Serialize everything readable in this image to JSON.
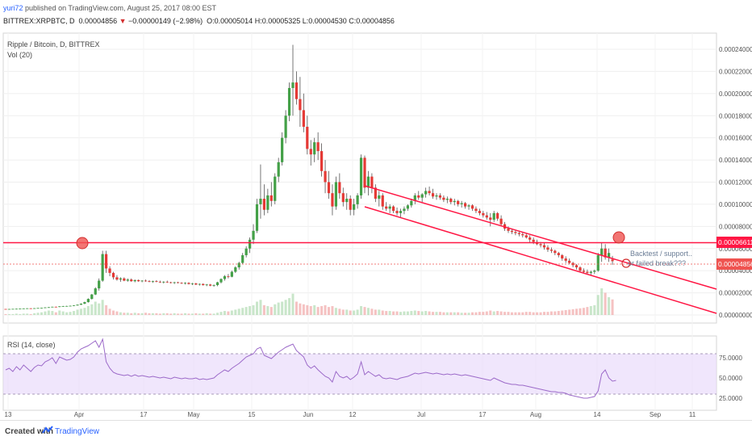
{
  "header": {
    "user": "yuri72",
    "published": "published on TradingView.com, August 25, 2017 08:00 EST",
    "symbol": "BITTREX:XRPBTC, D",
    "last": "0.00004856",
    "change": "−0.00000149 (−2.98%)",
    "ohlc": "O:0.00005014 H:0.00005325 L:0.00004530 C:0.00004856"
  },
  "chart_data": {
    "type": "candlestick",
    "title": "Ripple / Bitcoin, D, BITTREX",
    "volume_label": "Vol (20)",
    "rsi_label": "RSI (14, close)",
    "x_ticks": [
      "13",
      "Apr",
      "17",
      "May",
      "15",
      "Jun",
      "12",
      "Jul",
      "17",
      "Aug",
      "14",
      "Sep",
      "11"
    ],
    "y_ticks": [
      "0.00024000",
      "0.00022000",
      "0.00020000",
      "0.00018000",
      "0.00016000",
      "0.00014000",
      "0.00012000",
      "0.00010000",
      "0.00008000",
      "0.00006000",
      "0.00004000",
      "0.00002000",
      "0.00000000"
    ],
    "ylim": [
      0.0,
      0.00024
    ],
    "rsi_ticks": [
      "75.0000",
      "50.0000",
      "25.0000"
    ],
    "rsi_band": [
      30,
      70
    ],
    "price_markers": [
      {
        "label": "0.00006611",
        "value": 6.611e-05,
        "color": "#ff1744"
      },
      {
        "label": "0.00004856",
        "value": 4.856e-05,
        "color": "#ef5350"
      }
    ],
    "annotations": [
      "Backtest / support..",
      "or failed break???"
    ],
    "colors": {
      "up": "#43a047",
      "down": "#e53935",
      "line": "#ff1744",
      "rsi": "#9c6ac9",
      "rsi_band": "#e8d9fb"
    },
    "ohlc": [
      [
        5.4e-06,
        5.5e-06,
        5.2e-06,
        5.3e-06
      ],
      [
        5.3e-06,
        5.5e-06,
        5.2e-06,
        5.4e-06
      ],
      [
        5.4e-06,
        5.6e-06,
        5.3e-06,
        5.5e-06
      ],
      [
        5.5e-06,
        5.7e-06,
        5.4e-06,
        5.6e-06
      ],
      [
        5.6e-06,
        5.8e-06,
        5.5e-06,
        5.7e-06
      ],
      [
        5.7e-06,
        6e-06,
        5.6e-06,
        5.9e-06
      ],
      [
        5.9e-06,
        6.1e-06,
        5.8e-06,
        6e-06
      ],
      [
        6e-06,
        6.1e-06,
        5.8e-06,
        5.9e-06
      ],
      [
        5.9e-06,
        6.2e-06,
        5.8e-06,
        6.1e-06
      ],
      [
        6.1e-06,
        6.4e-06,
        6e-06,
        6.3e-06
      ],
      [
        6.3e-06,
        6.6e-06,
        6.2e-06,
        6.5e-06
      ],
      [
        6.5e-06,
        7e-06,
        6.3e-06,
        6.8e-06
      ],
      [
        6.8e-06,
        7.2e-06,
        6.6e-06,
        7e-06
      ],
      [
        7e-06,
        7.5e-06,
        6.9e-06,
        7.4e-06
      ],
      [
        7.4e-06,
        7.6e-06,
        7.1e-06,
        7.2e-06
      ],
      [
        7.2e-06,
        7.9e-06,
        7.1e-06,
        7.8e-06
      ],
      [
        7.8e-06,
        8.2e-06,
        7.6e-06,
        8e-06
      ],
      [
        8e-06,
        8.3e-06,
        7.8e-06,
        8.1e-06
      ],
      [
        8.1e-06,
        8.5e-06,
        7.9e-06,
        8.3e-06
      ],
      [
        8.3e-06,
        8.8e-06,
        8.1e-06,
        8.6e-06
      ],
      [
        8.6e-06,
        9.5e-06,
        8.5e-06,
        9.3e-06
      ],
      [
        9.3e-06,
        1.05e-05,
        9e-06,
        1.02e-05
      ],
      [
        1.02e-05,
        1.2e-05,
        9.8e-06,
        1.16e-05
      ],
      [
        1.16e-05,
        1.5e-05,
        1.12e-05,
        1.45e-05
      ],
      [
        1.45e-05,
        1.9e-05,
        1.4e-05,
        1.85e-05
      ],
      [
        1.85e-05,
        2.5e-05,
        1.8e-05,
        2.4e-05
      ],
      [
        2.4e-05,
        3.3e-05,
        2.2e-05,
        3.1e-05
      ],
      [
        3.1e-05,
        5.8e-05,
        3e-05,
        5.5e-05
      ],
      [
        5.5e-05,
        5.8e-05,
        3.8e-05,
        4.2e-05
      ],
      [
        4.2e-05,
        4.4e-05,
        3.5e-05,
        3.8e-05
      ],
      [
        3.8e-05,
        3.9e-05,
        3.2e-05,
        3.4e-05
      ],
      [
        3.4e-05,
        3.6e-05,
        3.1e-05,
        3.2e-05
      ],
      [
        3.2e-05,
        3.4e-05,
        3e-05,
        3.3e-05
      ],
      [
        3.3e-05,
        3.4e-05,
        3.05e-05,
        3.1e-05
      ],
      [
        3.1e-05,
        3.3e-05,
        3e-05,
        3.2e-05
      ],
      [
        3.2e-05,
        3.3e-05,
        3e-05,
        3.05e-05
      ],
      [
        3.05e-05,
        3.2e-05,
        2.95e-05,
        3.15e-05
      ],
      [
        3.15e-05,
        3.2e-05,
        3e-05,
        3.05e-05
      ],
      [
        3.05e-05,
        3.15e-05,
        2.95e-05,
        3.1e-05
      ],
      [
        3.1e-05,
        3.2e-05,
        3e-05,
        3.05e-05
      ],
      [
        3.05e-05,
        3.15e-05,
        2.95e-05,
        3e-05
      ],
      [
        3e-05,
        3.1e-05,
        2.9e-05,
        3.05e-05
      ],
      [
        3.05e-05,
        3.15e-05,
        2.95e-05,
        3e-05
      ],
      [
        3e-05,
        3.1e-05,
        2.9e-05,
        2.95e-05
      ],
      [
        2.95e-05,
        3.05e-05,
        2.85e-05,
        3e-05
      ],
      [
        3e-05,
        3.1e-05,
        2.9e-05,
        2.95e-05
      ],
      [
        2.95e-05,
        3e-05,
        2.85e-05,
        2.9e-05
      ],
      [
        2.9e-05,
        3e-05,
        2.8e-05,
        2.95e-05
      ],
      [
        2.95e-05,
        3e-05,
        2.85e-05,
        2.9e-05
      ],
      [
        2.9e-05,
        2.95e-05,
        2.8e-05,
        2.85e-05
      ],
      [
        2.85e-05,
        2.95e-05,
        2.75e-05,
        2.9e-05
      ],
      [
        2.9e-05,
        2.95e-05,
        2.75e-05,
        2.8e-05
      ],
      [
        2.8e-05,
        2.9e-05,
        2.7e-05,
        2.85e-05
      ],
      [
        2.85e-05,
        2.9e-05,
        2.7e-05,
        2.75e-05
      ],
      [
        2.75e-05,
        2.85e-05,
        2.65e-05,
        2.8e-05
      ],
      [
        2.8e-05,
        2.85e-05,
        2.65e-05,
        2.7e-05
      ],
      [
        2.7e-05,
        2.8e-05,
        2.6e-05,
        2.75e-05
      ],
      [
        2.75e-05,
        2.8e-05,
        2.6e-05,
        2.65e-05
      ],
      [
        2.65e-05,
        2.75e-05,
        2.55e-05,
        2.7e-05
      ],
      [
        2.7e-05,
        3e-05,
        2.6e-05,
        2.95e-05
      ],
      [
        2.95e-05,
        3.3e-05,
        2.85e-05,
        3.25e-05
      ],
      [
        3.25e-05,
        3.6e-05,
        3.1e-05,
        3.5e-05
      ],
      [
        3.5e-05,
        3.7e-05,
        3.3e-05,
        3.45e-05
      ],
      [
        3.45e-05,
        4e-05,
        3.4e-05,
        3.9e-05
      ],
      [
        3.9e-05,
        4.4e-05,
        3.8e-05,
        4.3e-05
      ],
      [
        4.3e-05,
        4.8e-05,
        4.1e-05,
        4.7e-05
      ],
      [
        4.7e-05,
        5.6e-05,
        4.6e-05,
        5.4e-05
      ],
      [
        5.4e-05,
        6.2e-05,
        5.2e-05,
        6e-05
      ],
      [
        6e-05,
        7e-05,
        5.6e-05,
        6.8e-05
      ],
      [
        6.8e-05,
        8.2e-05,
        6.4e-05,
        7.6e-05
      ],
      [
        7.6e-05,
        0.000105,
        7.4e-05,
        0.0001
      ],
      [
        0.0001,
        0.000136,
        8.7e-05,
        0.000105
      ],
      [
        0.000105,
        0.000118,
        9e-05,
        9.5e-05
      ],
      [
        9.5e-05,
        0.000114,
        9.2e-05,
        0.000108
      ],
      [
        0.000108,
        0.00012,
        9.8e-05,
        0.000103
      ],
      [
        0.000103,
        0.000128,
        0.0001,
        0.000125
      ],
      [
        0.000125,
        0.000142,
        0.00012,
        0.000138
      ],
      [
        0.000138,
        0.000165,
        0.000135,
        0.00016
      ],
      [
        0.00016,
        0.000185,
        0.000155,
        0.00018
      ],
      [
        0.00018,
        0.00021,
        0.000175,
        0.000205
      ],
      [
        0.000205,
        0.000244,
        0.00018,
        0.00021
      ],
      [
        0.00021,
        0.00022,
        0.00019,
        0.000195
      ],
      [
        0.000195,
        0.000215,
        0.00017,
        0.000185
      ],
      [
        0.000185,
        0.0002,
        0.000165,
        0.00017
      ],
      [
        0.00017,
        0.00018,
        0.000145,
        0.00015
      ],
      [
        0.00015,
        0.000158,
        0.000135,
        0.000145
      ],
      [
        0.000145,
        0.00016,
        0.000138,
        0.000156
      ],
      [
        0.000156,
        0.000165,
        0.00014,
        0.000148
      ],
      [
        0.000148,
        0.000155,
        0.000125,
        0.00013
      ],
      [
        0.00013,
        0.00014,
        0.00011,
        0.00012
      ],
      [
        0.00012,
        0.00013,
        0.000105,
        0.00011
      ],
      [
        0.00011,
        0.000118,
        9e-05,
        9.8e-05
      ],
      [
        9.8e-05,
        0.000125,
        9.5e-05,
        0.00012
      ],
      [
        0.00012,
        0.000128,
        0.000105,
        0.00011
      ],
      [
        0.00011,
        0.000115,
        9.8e-05,
        0.000102
      ],
      [
        0.000102,
        0.00011,
        9.5e-05,
        0.000105
      ],
      [
        0.000105,
        0.000108,
        9e-05,
        9.5e-05
      ],
      [
        9.5e-05,
        0.000105,
        9e-05,
        0.0001
      ],
      [
        0.0001,
        0.00011,
        9.6e-05,
        0.000108
      ],
      [
        0.000108,
        0.000145,
        0.000105,
        0.000142
      ],
      [
        0.000142,
        0.000144,
        0.00011,
        0.000115
      ],
      [
        0.000115,
        0.00013,
        0.000108,
        0.000125
      ],
      [
        0.000125,
        0.000128,
        0.00011,
        0.000115
      ],
      [
        0.000115,
        0.000118,
        0.000102,
        0.000105
      ],
      [
        0.000105,
        0.000112,
        9.8e-05,
        0.000108
      ],
      [
        0.000108,
        0.00011,
        9.5e-05,
        9.8e-05
      ],
      [
        9.8e-05,
        0.000102,
        9.4e-05,
        9.6e-05
      ],
      [
        9.6e-05,
        0.0001,
        9.2e-05,
        9.8e-05
      ],
      [
        9.8e-05,
        9.9e-05,
        9.2e-05,
        9.4e-05
      ],
      [
        9.4e-05,
        9.7e-05,
        9e-05,
        9.2e-05
      ],
      [
        9.2e-05,
        9.6e-05,
        8.8e-05,
        9.4e-05
      ],
      [
        9.4e-05,
        9.8e-05,
        9.1e-05,
        9.6e-05
      ],
      [
        9.6e-05,
        0.0001,
        9.4e-05,
        9.9e-05
      ],
      [
        9.9e-05,
        0.000105,
        9.7e-05,
        0.000103
      ],
      [
        0.000103,
        0.00011,
        0.0001,
        0.000108
      ],
      [
        0.000108,
        0.000112,
        0.000104,
        0.000106
      ],
      [
        0.000106,
        0.00011,
        0.000102,
        0.000109
      ],
      [
        0.000109,
        0.000115,
        0.000106,
        0.000112
      ],
      [
        0.000112,
        0.000116,
        0.000108,
        0.00011
      ],
      [
        0.00011,
        0.000114,
        0.000105,
        0.000107
      ],
      [
        0.000107,
        0.00011,
        0.000104,
        0.000108
      ],
      [
        0.000108,
        0.00011,
        0.000104,
        0.000106
      ],
      [
        0.000106,
        0.000108,
        0.000102,
        0.000104
      ],
      [
        0.000104,
        0.000107,
        0.000101,
        0.000105
      ],
      [
        0.000105,
        0.000106,
        0.0001,
        0.000102
      ],
      [
        0.000102,
        0.000105,
        9.9e-05,
        0.000103
      ],
      [
        0.000103,
        0.000104,
        9.8e-05,
        0.0001
      ],
      [
        0.0001,
        0.000103,
        9.7e-05,
        0.000101
      ],
      [
        0.000101,
        0.000102,
        9.6e-05,
        9.8e-05
      ],
      [
        9.8e-05,
        0.0001,
        9.5e-05,
        9.9e-05
      ],
      [
        9.9e-05,
        0.0001,
        9.4e-05,
        9.6e-05
      ],
      [
        9.6e-05,
        9.8e-05,
        9.2e-05,
        9.4e-05
      ],
      [
        9.4e-05,
        9.6e-05,
        9e-05,
        9.2e-05
      ],
      [
        9.2e-05,
        9.4e-05,
        8.8e-05,
        9e-05
      ],
      [
        9e-05,
        9.3e-05,
        8.6e-05,
        8.8e-05
      ],
      [
        8.8e-05,
        9.2e-05,
        8e-05,
        8.6e-05
      ],
      [
        8.6e-05,
        9.4e-05,
        8.4e-05,
        9.2e-05
      ],
      [
        9.2e-05,
        9.3e-05,
        8.5e-05,
        8.7e-05
      ],
      [
        8.7e-05,
        9e-05,
        8e-05,
        8.2e-05
      ],
      [
        8.2e-05,
        8.4e-05,
        7.6e-05,
        7.8e-05
      ],
      [
        7.8e-05,
        8e-05,
        7.4e-05,
        7.6e-05
      ],
      [
        7.6e-05,
        7.8e-05,
        7.3e-05,
        7.5e-05
      ],
      [
        7.5e-05,
        7.7e-05,
        7.2e-05,
        7.4e-05
      ],
      [
        7.4e-05,
        7.6e-05,
        7.1e-05,
        7.3e-05
      ],
      [
        7.3e-05,
        7.5e-05,
        7e-05,
        7.2e-05
      ],
      [
        7.2e-05,
        7.4e-05,
        6.9e-05,
        7e-05
      ],
      [
        7e-05,
        7.2e-05,
        6.5e-05,
        6.8e-05
      ],
      [
        6.8e-05,
        7e-05,
        6.4e-05,
        6.6e-05
      ],
      [
        6.6e-05,
        6.8e-05,
        6.3e-05,
        6.4e-05
      ],
      [
        6.4e-05,
        6.6e-05,
        6.1e-05,
        6.3e-05
      ],
      [
        6.3e-05,
        6.5e-05,
        5.9e-05,
        6.1e-05
      ],
      [
        6.1e-05,
        6.3e-05,
        5.7e-05,
        5.9e-05
      ],
      [
        5.9e-05,
        6.1e-05,
        5.6e-05,
        5.8e-05
      ],
      [
        5.8e-05,
        5.9e-05,
        5.4e-05,
        5.6e-05
      ],
      [
        5.6e-05,
        5.7e-05,
        5.2e-05,
        5.4e-05
      ],
      [
        5.4e-05,
        5.5e-05,
        4.9e-05,
        5.1e-05
      ],
      [
        5.1e-05,
        5.3e-05,
        4.7e-05,
        4.9e-05
      ],
      [
        4.9e-05,
        5.1e-05,
        4.6e-05,
        4.7e-05
      ],
      [
        4.7e-05,
        4.8e-05,
        4.3e-05,
        4.5e-05
      ],
      [
        4.5e-05,
        4.6e-05,
        4.1e-05,
        4.3e-05
      ],
      [
        4.3e-05,
        4.4e-05,
        3.9e-05,
        4e-05
      ],
      [
        4e-05,
        4.2e-05,
        3.8e-05,
        3.9e-05
      ],
      [
        3.9e-05,
        4.1e-05,
        3.7e-05,
        3.8e-05
      ],
      [
        3.8e-05,
        4e-05,
        3.6e-05,
        3.9e-05
      ],
      [
        3.9e-05,
        4.1e-05,
        3.7e-05,
        4e-05
      ],
      [
        4e-05,
        5.6e-05,
        3.9e-05,
        5.4e-05
      ],
      [
        5.4e-05,
        6.5e-05,
        4.8e-05,
        6e-05
      ],
      [
        6e-05,
        6.4e-05,
        5e-05,
        5.2e-05
      ],
      [
        5.2e-05,
        6e-05,
        4.8e-05,
        5.6e-05
      ],
      [
        5.01e-05,
        5.33e-05,
        4.53e-05,
        4.86e-05
      ]
    ],
    "volume_relative": [
      0.02,
      0.02,
      0.02,
      0.03,
      0.02,
      0.03,
      0.03,
      0.02,
      0.04,
      0.05,
      0.06,
      0.08,
      0.1,
      0.09,
      0.06,
      0.1,
      0.08,
      0.06,
      0.07,
      0.09,
      0.12,
      0.14,
      0.16,
      0.2,
      0.24,
      0.3,
      0.26,
      0.34,
      0.22,
      0.14,
      0.1,
      0.08,
      0.06,
      0.05,
      0.05,
      0.04,
      0.05,
      0.04,
      0.04,
      0.05,
      0.04,
      0.04,
      0.04,
      0.03,
      0.04,
      0.04,
      0.03,
      0.04,
      0.03,
      0.03,
      0.04,
      0.03,
      0.03,
      0.04,
      0.03,
      0.03,
      0.04,
      0.03,
      0.03,
      0.05,
      0.07,
      0.09,
      0.08,
      0.1,
      0.12,
      0.14,
      0.16,
      0.18,
      0.2,
      0.22,
      0.3,
      0.34,
      0.22,
      0.2,
      0.18,
      0.24,
      0.28,
      0.3,
      0.34,
      0.38,
      0.48,
      0.3,
      0.26,
      0.24,
      0.22,
      0.2,
      0.22,
      0.18,
      0.2,
      0.22,
      0.18,
      0.2,
      0.16,
      0.14,
      0.12,
      0.12,
      0.1,
      0.1,
      0.12,
      0.2,
      0.18,
      0.16,
      0.14,
      0.12,
      0.12,
      0.1,
      0.09,
      0.09,
      0.08,
      0.08,
      0.07,
      0.08,
      0.08,
      0.09,
      0.1,
      0.09,
      0.08,
      0.09,
      0.08,
      0.07,
      0.07,
      0.07,
      0.06,
      0.06,
      0.06,
      0.06,
      0.06,
      0.05,
      0.05,
      0.05,
      0.06,
      0.06,
      0.07,
      0.07,
      0.08,
      0.1,
      0.08,
      0.09,
      0.08,
      0.07,
      0.07,
      0.06,
      0.06,
      0.06,
      0.06,
      0.07,
      0.07,
      0.06,
      0.06,
      0.06,
      0.07,
      0.07,
      0.08,
      0.08,
      0.09,
      0.1,
      0.11,
      0.12,
      0.13,
      0.14,
      0.15,
      0.16,
      0.18,
      0.2,
      0.22,
      0.45,
      0.6,
      0.5,
      0.4,
      0.35
    ],
    "rsi": [
      60,
      62,
      58,
      64,
      60,
      66,
      62,
      58,
      63,
      66,
      65,
      70,
      72,
      75,
      68,
      76,
      74,
      72,
      73,
      76,
      82,
      86,
      88,
      90,
      93,
      96,
      88,
      98,
      70,
      62,
      57,
      55,
      54,
      53,
      54,
      52,
      54,
      52,
      53,
      52,
      51,
      52,
      51,
      50,
      51,
      50,
      49,
      51,
      50,
      49,
      50,
      49,
      49,
      50,
      48,
      49,
      48,
      49,
      50,
      54,
      57,
      60,
      58,
      62,
      65,
      68,
      72,
      76,
      78,
      80,
      86,
      88,
      78,
      76,
      74,
      78,
      82,
      85,
      88,
      90,
      92,
      84,
      80,
      76,
      66,
      62,
      65,
      60,
      56,
      52,
      50,
      45,
      58,
      52,
      50,
      52,
      48,
      51,
      55,
      70,
      54,
      58,
      55,
      52,
      54,
      50,
      49,
      50,
      49,
      48,
      50,
      51,
      52,
      54,
      56,
      55,
      56,
      57,
      56,
      55,
      56,
      55,
      54,
      55,
      54,
      55,
      54,
      53,
      54,
      53,
      52,
      51,
      50,
      49,
      48,
      47,
      50,
      48,
      46,
      44,
      43,
      42,
      42,
      41,
      41,
      40,
      39,
      38,
      37,
      36,
      35,
      34,
      33,
      33,
      32,
      32,
      31,
      29,
      28,
      27,
      26,
      25,
      25,
      26,
      27,
      34,
      55,
      60,
      50,
      46,
      47
    ]
  }
}
